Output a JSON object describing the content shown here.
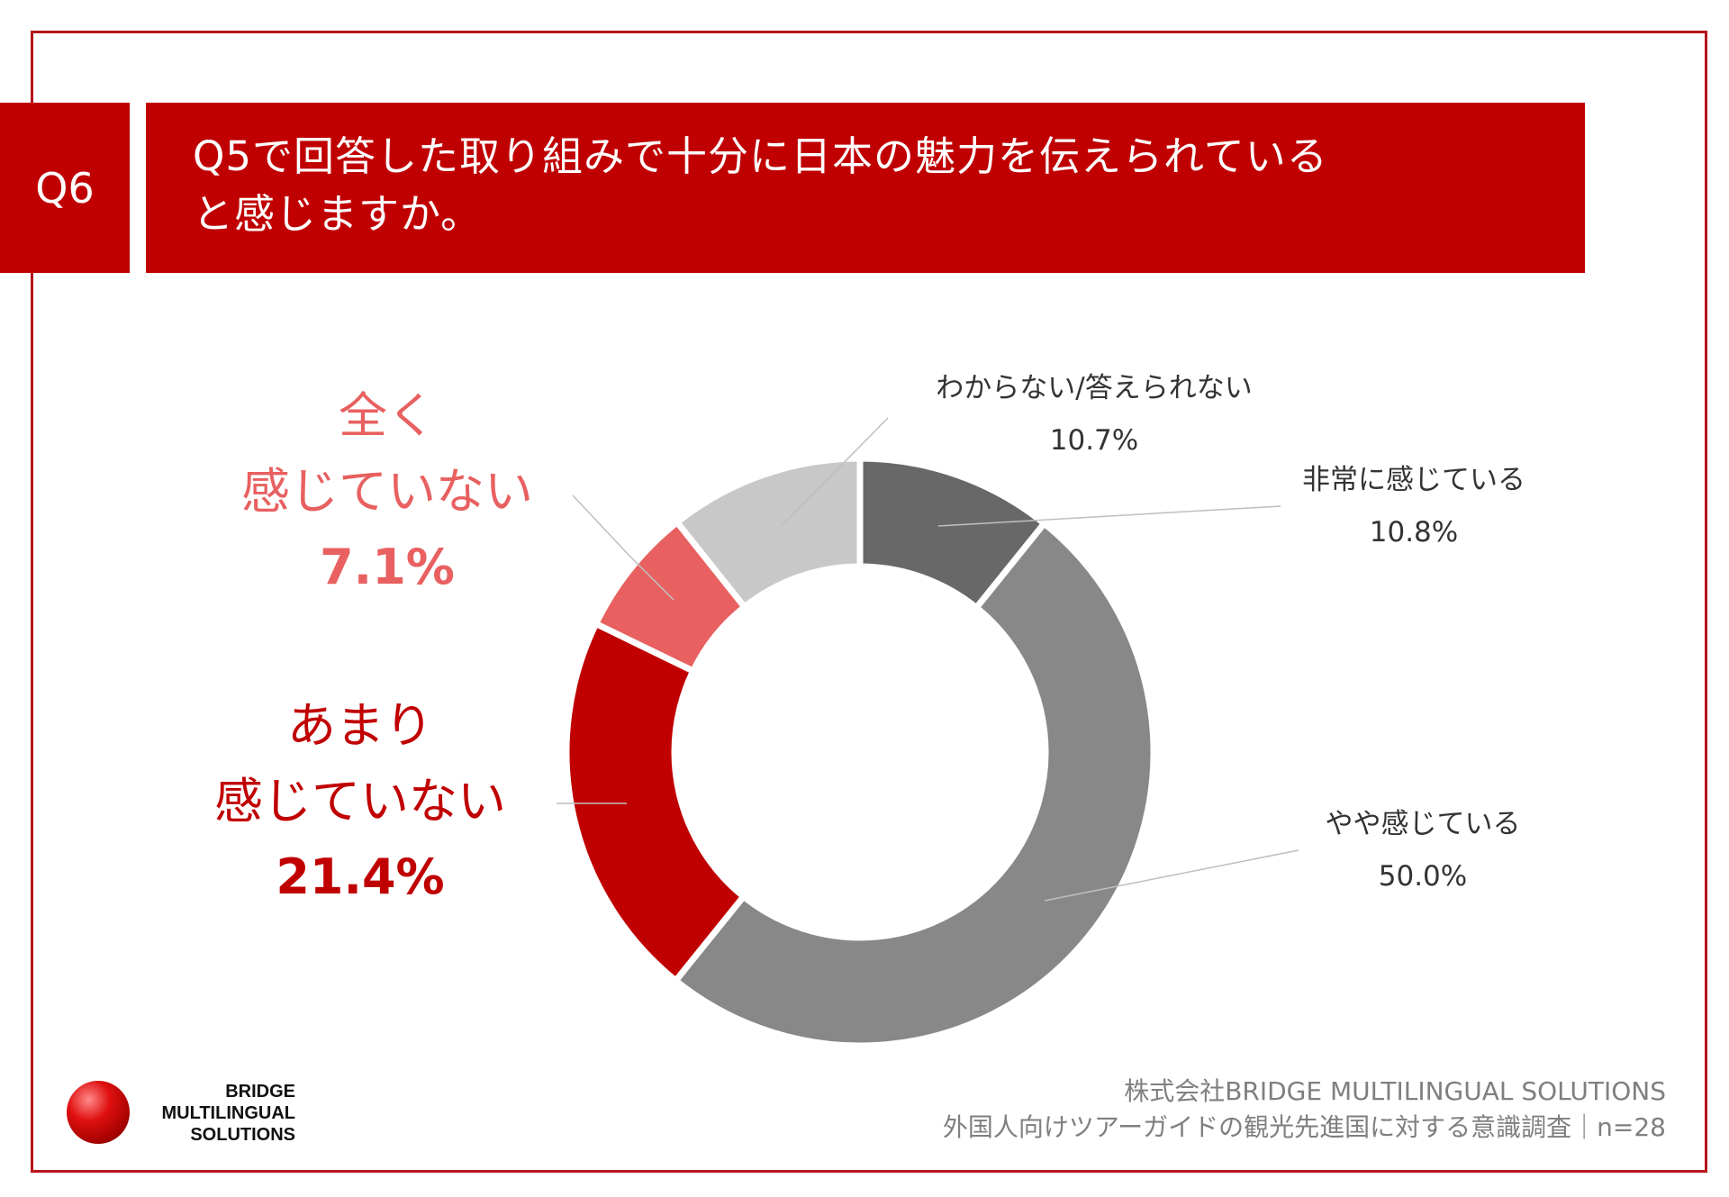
{
  "header": {
    "question_badge": "Q6",
    "question_line1": "Q5で回答した取り組みで十分に日本の魅力を伝えられている",
    "question_line2": "と感じますか。"
  },
  "chart_data": {
    "type": "donut",
    "slices": [
      {
        "label": "非常に感じている",
        "value": 10.8,
        "display": "10.8%",
        "color": "#686868"
      },
      {
        "label": "やや感じている",
        "value": 50.0,
        "display": "50.0%",
        "color": "#888888"
      },
      {
        "label": "あまり 感じていない",
        "value": 21.4,
        "display": "21.4%",
        "color": "#c00000"
      },
      {
        "label": "全く 感じていない",
        "value": 7.1,
        "display": "7.1%",
        "color": "#e86060"
      },
      {
        "label": "わからない/答えられない",
        "value": 10.7,
        "display": "10.7%",
        "color": "#c8c8c8"
      }
    ]
  },
  "labels": {
    "very": {
      "name": "非常に感じている",
      "pct": "10.8%"
    },
    "somewhat": {
      "name": "やや感じている",
      "pct": "50.0%"
    },
    "not_much": {
      "line1": "あまり",
      "line2": "感じていない",
      "pct": "21.4%"
    },
    "not_at_all": {
      "line1": "全く",
      "line2": "感じていない",
      "pct": "7.1%"
    },
    "unknown": {
      "name": "わからない/答えられない",
      "pct": "10.7%"
    }
  },
  "logo": {
    "line1": "BRIDGE",
    "line2": "MULTILINGUAL",
    "line3": "SOLUTIONS"
  },
  "source": {
    "line1": "株式会社BRIDGE MULTILINGUAL SOLUTIONS",
    "line2": "外国人向けツアーガイドの観光先進国に対する意識調査｜n=28"
  }
}
